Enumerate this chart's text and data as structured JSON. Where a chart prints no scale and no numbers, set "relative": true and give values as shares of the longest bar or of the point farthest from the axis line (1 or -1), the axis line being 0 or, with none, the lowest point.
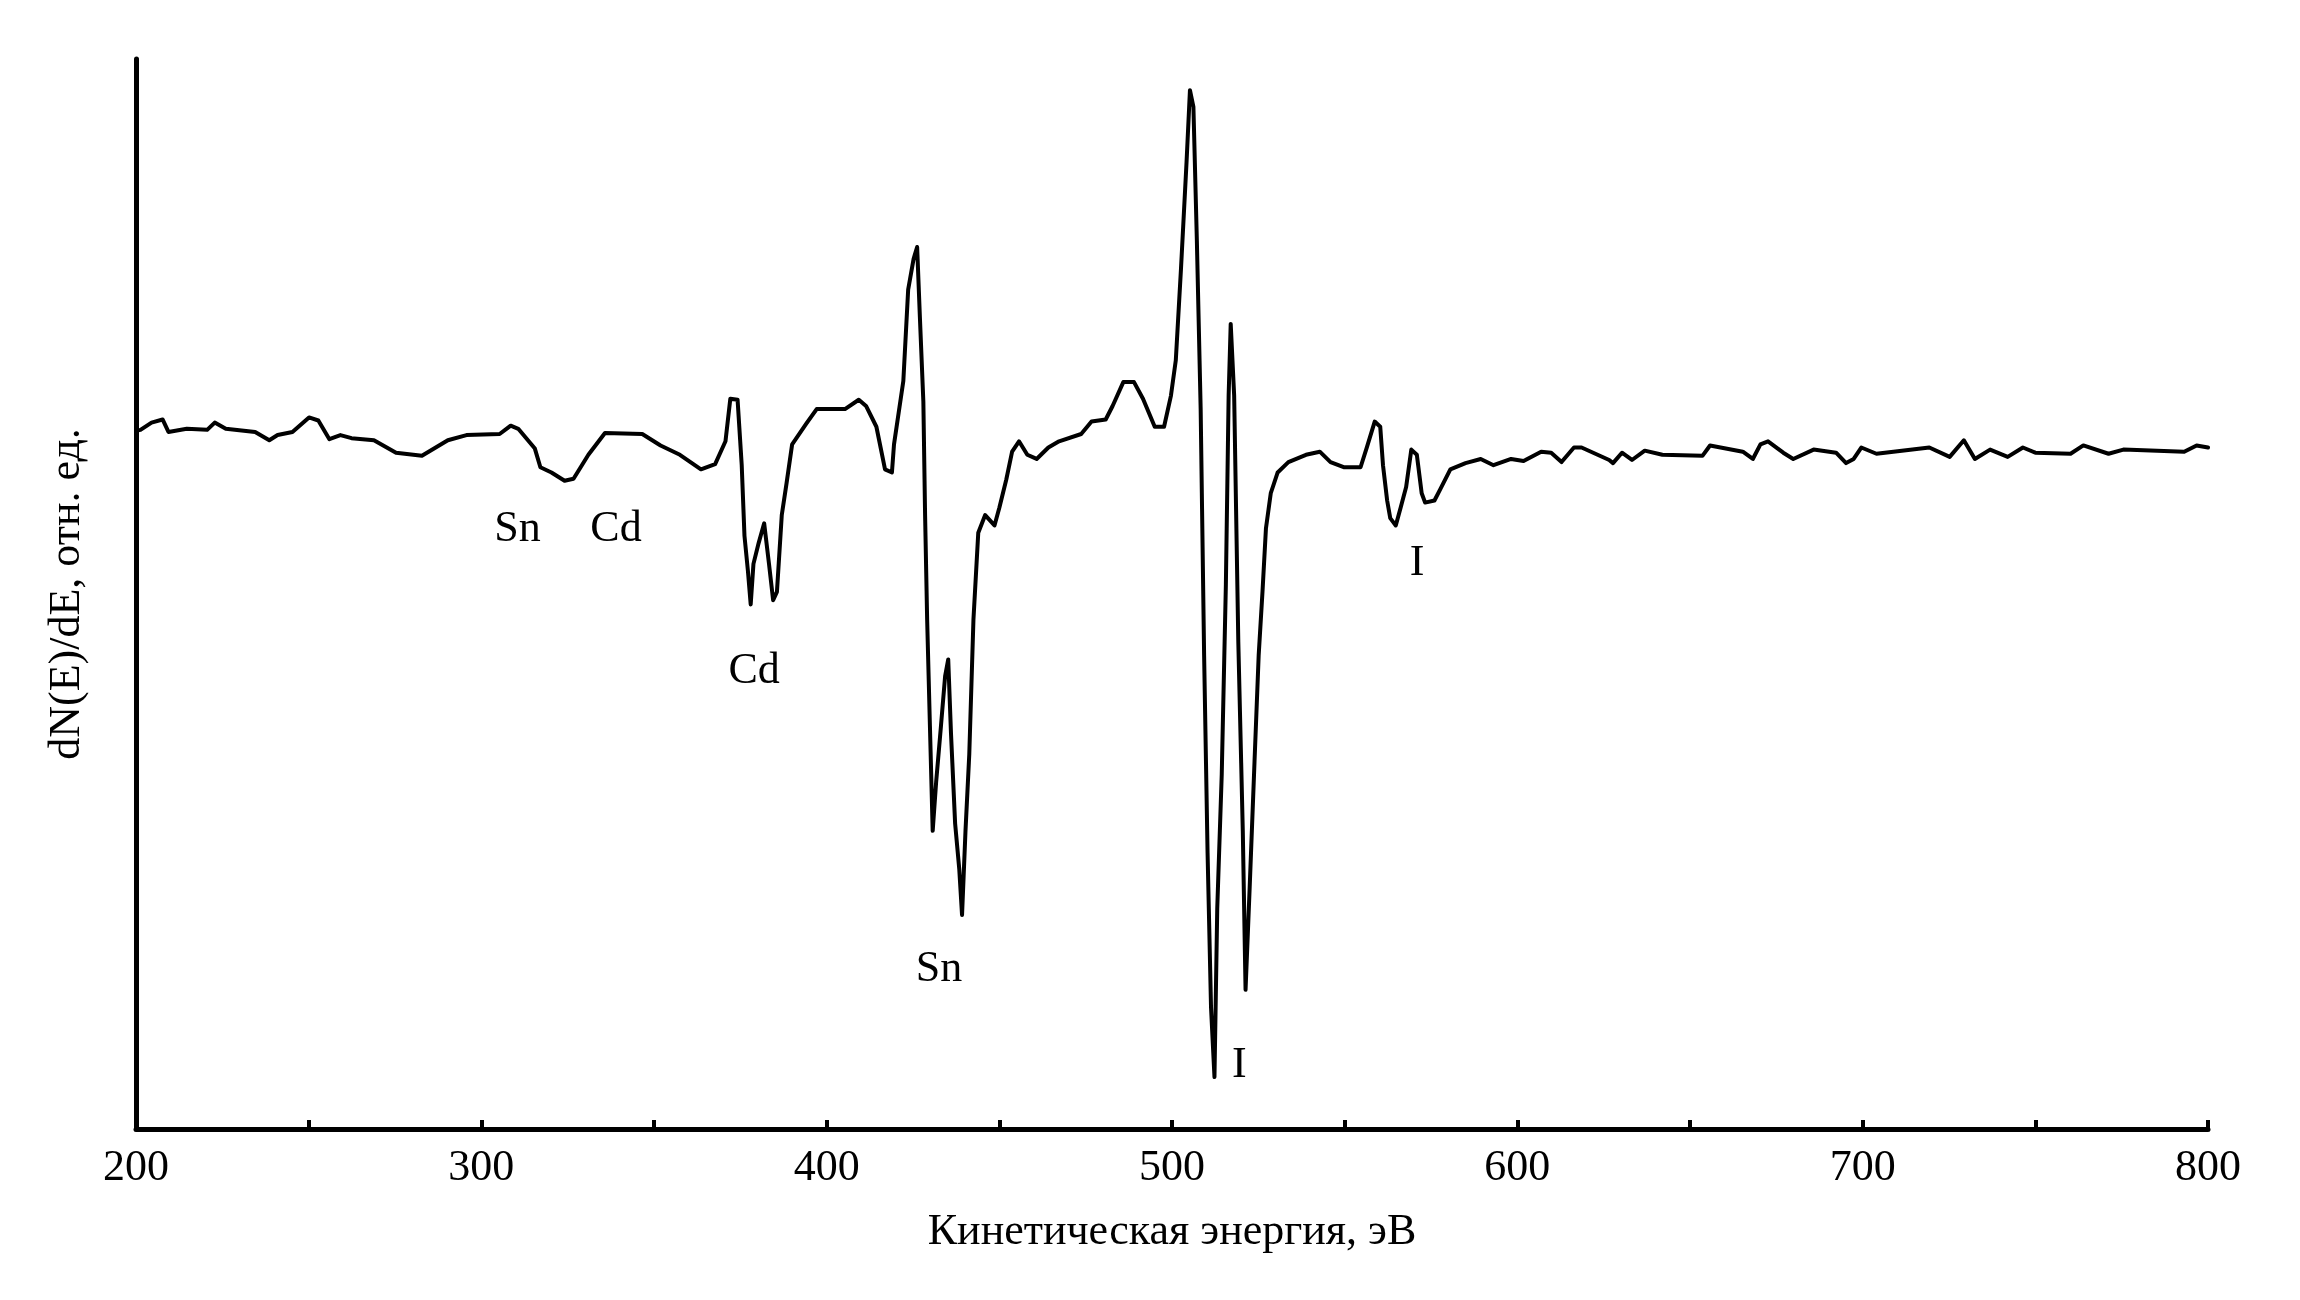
{
  "chart_data": {
    "type": "line",
    "relative": true,
    "xlabel": "Кинетическая энергия, эВ",
    "ylabel": "dN(E)/dE, отн. ед.",
    "color": "#000000",
    "line_style": "solid",
    "marker": "none",
    "grid": false,
    "xlim": [
      200,
      800
    ],
    "xticks": [
      200,
      {
        "value": 250,
        "label": null
      },
      300,
      {
        "value": 350,
        "label": null
      },
      400,
      {
        "value": 450,
        "label": null
      },
      500,
      {
        "value": 550,
        "label": null
      },
      600,
      {
        "value": 650,
        "label": null
      },
      700,
      {
        "value": 750,
        "label": null
      },
      800
    ],
    "x": [
      200,
      201.3,
      204.5,
      207.7,
      209.4,
      214.7,
      220.6,
      222.8,
      226.0,
      234.5,
      238.6,
      241.0,
      245.3,
      250.1,
      252.8,
      256.0,
      259.2,
      262.4,
      268.9,
      275.3,
      282.8,
      290.3,
      295.7,
      305.3,
      308.5,
      310.7,
      315.5,
      317.1,
      320.3,
      324.1,
      326.7,
      331.0,
      335.8,
      346.6,
      351.9,
      357.5,
      363.6,
      367.7,
      370.7,
      372.1,
      374.2,
      375.4,
      376.2,
      377.2,
      378.0,
      378.8,
      380.3,
      381.9,
      383.3,
      384.5,
      385.6,
      387.0,
      388.4,
      390.0,
      394.1,
      397.1,
      401.2,
      405.3,
      409.3,
      411.4,
      414.4,
      416.9,
      418.9,
      419.5,
      422.2,
      423.6,
      425.2,
      426.2,
      427.0,
      428.0,
      428.5,
      429.1,
      429.9,
      430.7,
      431.7,
      433.1,
      434.3,
      435.2,
      436.0,
      437.2,
      438.4,
      439.2,
      440.2,
      441.3,
      442.5,
      443.9,
      445.9,
      448.6,
      450.0,
      452.0,
      453.7,
      455.7,
      458.1,
      460.8,
      464.2,
      467.3,
      473.7,
      476.7,
      480.8,
      482.8,
      485.9,
      489.0,
      491.6,
      495.0,
      497.7,
      499.7,
      501.1,
      502.6,
      504.2,
      505.2,
      506.2,
      507.2,
      508.3,
      509.3,
      510.3,
      511.3,
      512.3,
      513.1,
      514.4,
      515.6,
      516.4,
      517.0,
      518.0,
      519.2,
      520.5,
      521.3,
      522.5,
      523.9,
      525.1,
      526.2,
      527.2,
      528.6,
      530.6,
      533.7,
      538.8,
      542.8,
      545.9,
      549.9,
      554.6,
      556.4,
      558.7,
      560.3,
      561.1,
      562.3,
      563.2,
      564.8,
      566.2,
      567.8,
      569.3,
      570.9,
      572.3,
      573.3,
      576.0,
      577.7,
      580.6,
      585.0,
      589.4,
      593.1,
      598.2,
      601.8,
      606.9,
      609.8,
      612.8,
      616.4,
      618.6,
      626.6,
      627.7,
      630.3,
      633.2,
      636.9,
      642.0,
      653.6,
      655.8,
      665.3,
      668.2,
      670.4,
      672.6,
      677.0,
      679.9,
      685.8,
      692.3,
      695.2,
      697.4,
      699.6,
      704.0,
      719.3,
      725.2,
      729.3,
      732.5,
      736.9,
      742.0,
      746.4,
      750.0,
      760.2,
      763.9,
      771.2,
      775.5,
      793.1,
      796.7,
      800
    ],
    "values": [
      0.672,
      0.673,
      0.68,
      0.683,
      0.671,
      0.674,
      0.673,
      0.68,
      0.674,
      0.671,
      0.663,
      0.668,
      0.671,
      0.685,
      0.682,
      0.664,
      0.668,
      0.665,
      0.663,
      0.651,
      0.648,
      0.663,
      0.668,
      0.669,
      0.677,
      0.674,
      0.655,
      0.637,
      0.632,
      0.624,
      0.626,
      0.649,
      0.67,
      0.669,
      0.658,
      0.649,
      0.635,
      0.64,
      0.662,
      0.703,
      0.702,
      0.639,
      0.571,
      0.537,
      0.505,
      0.544,
      0.564,
      0.583,
      0.544,
      0.509,
      0.517,
      0.591,
      0.622,
      0.659,
      0.679,
      0.693,
      0.693,
      0.693,
      0.702,
      0.696,
      0.676,
      0.635,
      0.632,
      0.659,
      0.72,
      0.808,
      0.838,
      0.849,
      0.781,
      0.7,
      0.591,
      0.49,
      0.388,
      0.287,
      0.334,
      0.388,
      0.436,
      0.452,
      0.381,
      0.294,
      0.25,
      0.206,
      0.287,
      0.361,
      0.49,
      0.574,
      0.591,
      0.581,
      0.598,
      0.625,
      0.652,
      0.662,
      0.649,
      0.645,
      0.656,
      0.662,
      0.669,
      0.681,
      0.683,
      0.696,
      0.719,
      0.719,
      0.703,
      0.676,
      0.676,
      0.706,
      0.74,
      0.828,
      0.93,
      1,
      0.984,
      0.855,
      0.693,
      0.456,
      0.266,
      0.117,
      0.05,
      0.212,
      0.341,
      0.524,
      0.706,
      0.775,
      0.706,
      0.469,
      0.287,
      0.134,
      0.233,
      0.354,
      0.456,
      0.517,
      0.578,
      0.612,
      0.632,
      0.642,
      0.649,
      0.652,
      0.642,
      0.637,
      0.637,
      0.656,
      0.681,
      0.676,
      0.639,
      0.605,
      0.588,
      0.581,
      0.598,
      0.618,
      0.654,
      0.649,
      0.612,
      0.603,
      0.605,
      0.616,
      0.635,
      0.641,
      0.645,
      0.639,
      0.645,
      0.643,
      0.652,
      0.651,
      0.642,
      0.656,
      0.656,
      0.644,
      0.641,
      0.651,
      0.644,
      0.653,
      0.649,
      0.648,
      0.658,
      0.652,
      0.645,
      0.659,
      0.662,
      0.651,
      0.645,
      0.654,
      0.651,
      0.641,
      0.645,
      0.656,
      0.65,
      0.656,
      0.647,
      0.663,
      0.645,
      0.654,
      0.647,
      0.656,
      0.651,
      0.65,
      0.658,
      0.65,
      0.654,
      0.652,
      0.658,
      0.656
    ],
    "annotations": [
      "Sn",
      "Cd",
      "Cd",
      "Sn",
      "I",
      "I"
    ]
  }
}
